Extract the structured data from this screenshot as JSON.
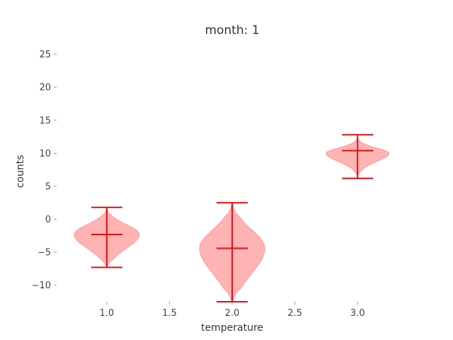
{
  "chart_data": {
    "type": "violin",
    "title": "month:  1",
    "xlabel": "temperature",
    "ylabel": "counts",
    "xlim": [
      0.6,
      3.4
    ],
    "ylim": [
      -12.5,
      27
    ],
    "xticks": [
      1.0,
      1.5,
      2.0,
      2.5,
      3.0
    ],
    "xtick_labels": [
      "1.0",
      "1.5",
      "2.0",
      "2.5",
      "3.0"
    ],
    "yticks": [
      -10,
      -5,
      0,
      5,
      10,
      15,
      20,
      25
    ],
    "ytick_labels": [
      "−10",
      "−5",
      "0",
      "5",
      "10",
      "15",
      "20",
      "25"
    ],
    "grid": false,
    "colors": {
      "body": "#ff9999",
      "lines": "#e01010"
    },
    "violins": [
      {
        "x": 1.0,
        "min": -7.3,
        "max": 1.8,
        "mean": -2.3,
        "mode": -2.3
      },
      {
        "x": 2.0,
        "min": -12.5,
        "max": 2.5,
        "mean": -4.4,
        "mode": -4.4
      },
      {
        "x": 3.0,
        "min": 6.2,
        "max": 12.8,
        "mean": 10.4,
        "mode": 10.0
      }
    ]
  }
}
